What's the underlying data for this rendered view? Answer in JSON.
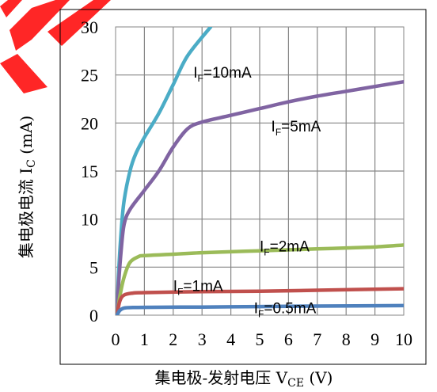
{
  "chart_data": {
    "type": "line",
    "xlabel": "集电极-发射电压 V_CE (V)",
    "xlabel_main": "集电极-发射电压 V",
    "xlabel_sub": "CE",
    "xlabel_unit": " (V)",
    "ylabel": "集电极电流 I_C (mA)",
    "ylabel_main": "集电极电流 I",
    "ylabel_sub": "C",
    "ylabel_unit": " (mA)",
    "xlim": [
      0,
      10
    ],
    "ylim": [
      0,
      30
    ],
    "xticks": [
      "0",
      "1",
      "2",
      "3",
      "4",
      "5",
      "6",
      "7",
      "8",
      "9",
      "10"
    ],
    "yticks": [
      "0",
      "5",
      "10",
      "15",
      "20",
      "25",
      "30"
    ],
    "grid": true,
    "series": [
      {
        "name": "I_F=10mA",
        "label_main": "I",
        "label_sub": "F",
        "label_rest": "=10mA",
        "color": "#4bacc6",
        "label_at": [
          2.7,
          25.3
        ],
        "points": [
          [
            0.05,
            0
          ],
          [
            0.1,
            4
          ],
          [
            0.2,
            9
          ],
          [
            0.3,
            12
          ],
          [
            0.5,
            15
          ],
          [
            0.7,
            16.8
          ],
          [
            1.0,
            18.5
          ],
          [
            1.5,
            21
          ],
          [
            2.0,
            24
          ],
          [
            2.5,
            27
          ],
          [
            3.3,
            30
          ]
        ]
      },
      {
        "name": "I_F=5mA",
        "label_main": "I",
        "label_sub": "F",
        "label_rest": "=5mA",
        "color": "#8064a2",
        "label_at": [
          5.4,
          19.7
        ],
        "points": [
          [
            0.05,
            0
          ],
          [
            0.1,
            3
          ],
          [
            0.2,
            7
          ],
          [
            0.3,
            9.5
          ],
          [
            0.5,
            11
          ],
          [
            1.0,
            13
          ],
          [
            1.5,
            15
          ],
          [
            2.0,
            17.5
          ],
          [
            2.5,
            19.4
          ],
          [
            3.0,
            20.1
          ],
          [
            4.0,
            20.8
          ],
          [
            5.0,
            21.5
          ],
          [
            6.0,
            22.2
          ],
          [
            7.0,
            22.8
          ],
          [
            8.0,
            23.3
          ],
          [
            9.0,
            23.8
          ],
          [
            10.0,
            24.3
          ]
        ]
      },
      {
        "name": "I_F=2mA",
        "label_main": "I",
        "label_sub": "F",
        "label_rest": "=2mA",
        "color": "#9bbb59",
        "label_at": [
          5.0,
          7.2
        ],
        "points": [
          [
            0.05,
            0
          ],
          [
            0.15,
            2
          ],
          [
            0.3,
            4
          ],
          [
            0.5,
            5.5
          ],
          [
            0.8,
            6.1
          ],
          [
            1.0,
            6.2
          ],
          [
            2,
            6.35
          ],
          [
            3,
            6.5
          ],
          [
            4,
            6.6
          ],
          [
            5,
            6.7
          ],
          [
            6,
            6.8
          ],
          [
            7,
            6.9
          ],
          [
            8,
            7.0
          ],
          [
            9,
            7.1
          ],
          [
            10,
            7.3
          ]
        ]
      },
      {
        "name": "I_F=1mA",
        "label_main": "I",
        "label_sub": "F",
        "label_rest": "=1mA",
        "color": "#c0504d",
        "label_at": [
          2.0,
          3.1
        ],
        "points": [
          [
            0.05,
            0
          ],
          [
            0.15,
            1.5
          ],
          [
            0.3,
            2.1
          ],
          [
            0.6,
            2.3
          ],
          [
            1,
            2.35
          ],
          [
            3,
            2.45
          ],
          [
            5,
            2.5
          ],
          [
            7,
            2.6
          ],
          [
            10,
            2.75
          ]
        ]
      },
      {
        "name": "I_F=0.5mA",
        "label_main": "I",
        "label_sub": "F",
        "label_rest": "=0.5mA",
        "color": "#4f81bd",
        "label_at": [
          4.8,
          0.8
        ],
        "points": [
          [
            0.05,
            0
          ],
          [
            0.15,
            0.5
          ],
          [
            0.3,
            0.75
          ],
          [
            0.6,
            0.8
          ],
          [
            1,
            0.82
          ],
          [
            3,
            0.85
          ],
          [
            5,
            0.9
          ],
          [
            7,
            0.95
          ],
          [
            10,
            1.0
          ]
        ]
      }
    ]
  },
  "watermark": {
    "color": "#ff0000"
  }
}
